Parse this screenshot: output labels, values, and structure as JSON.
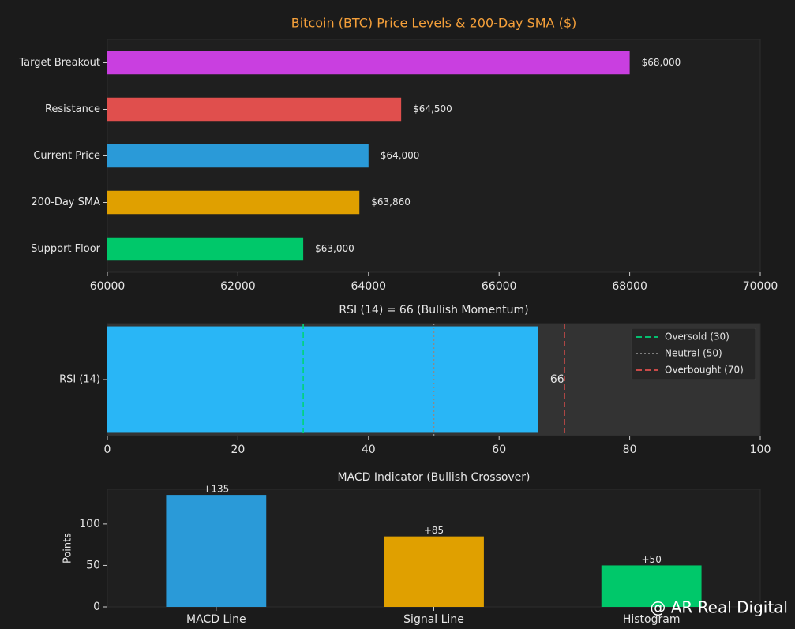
{
  "chart_data": [
    {
      "type": "bar",
      "orientation": "horizontal",
      "title": "Bitcoin (BTC) Price Levels & 200-Day SMA ($)",
      "categories": [
        "Target Breakout",
        "Resistance",
        "Current Price",
        "200-Day SMA",
        "Support Floor"
      ],
      "values": [
        68000,
        64500,
        64000,
        63860,
        63000
      ],
      "value_labels": [
        "$68,000",
        "$64,500",
        "$64,000",
        "$63,860",
        "$63,000"
      ],
      "colors": [
        "#c93fe0",
        "#e04f4d",
        "#2a9ad8",
        "#e0a000",
        "#00c86a"
      ],
      "xlim": [
        60000,
        70000
      ],
      "xticks": [
        60000,
        62000,
        64000,
        66000,
        68000,
        70000
      ]
    },
    {
      "type": "bar",
      "orientation": "horizontal",
      "title": "RSI (14) = 66 (Bullish Momentum)",
      "categories": [
        "RSI (14)"
      ],
      "values": [
        66
      ],
      "color": "#29b6f6",
      "xlim": [
        0,
        100
      ],
      "xticks": [
        0,
        20,
        40,
        60,
        80,
        100
      ],
      "reference_lines": [
        {
          "name": "Oversold (30)",
          "value": 30,
          "color": "#00d37a",
          "style": "dashed"
        },
        {
          "name": "Neutral (50)",
          "value": 50,
          "color": "#8a8a8a",
          "style": "dotted"
        },
        {
          "name": "Overbought (70)",
          "value": 70,
          "color": "#e04f4d",
          "style": "dashed"
        }
      ],
      "legend": "upper right"
    },
    {
      "type": "bar",
      "orientation": "vertical",
      "title": "MACD Indicator (Bullish Crossover)",
      "ylabel": "Points",
      "categories": [
        "MACD Line",
        "Signal Line",
        "Histogram"
      ],
      "values": [
        135,
        85,
        50
      ],
      "value_labels": [
        "+135",
        "+85",
        "+50"
      ],
      "colors": [
        "#2a9ad8",
        "#e0a000",
        "#00c86a"
      ],
      "ylim": [
        0,
        141.75
      ],
      "yticks": [
        0,
        50,
        100
      ]
    }
  ],
  "watermark": "@ AR Real Digital"
}
